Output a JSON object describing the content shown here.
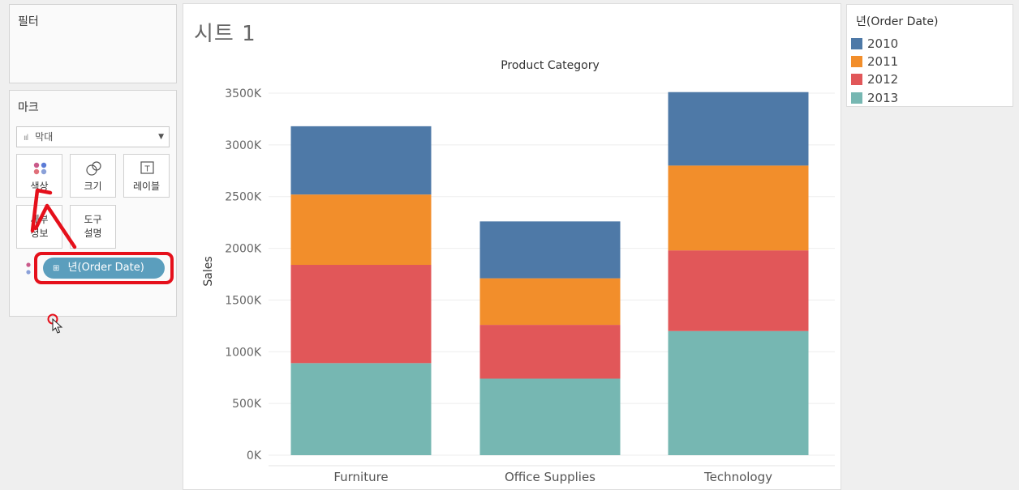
{
  "filters": {
    "title": "필터"
  },
  "marks": {
    "title": "마크",
    "mark_type": "막대",
    "buttons": [
      {
        "id": "color",
        "label": "색상"
      },
      {
        "id": "size",
        "label": "크기"
      },
      {
        "id": "label",
        "label": "레이블"
      },
      {
        "id": "detail",
        "label_line1": "세부",
        "label_line2": "정보"
      },
      {
        "id": "tooltip",
        "label_line1": "도구",
        "label_line2": "설명"
      }
    ],
    "pill": "년(Order Date)"
  },
  "sheet": {
    "title": "시트 1"
  },
  "legend": {
    "title": "년(Order Date)",
    "items": [
      {
        "label": "2010",
        "color": "#4e79a7"
      },
      {
        "label": "2011",
        "color": "#f28e2b"
      },
      {
        "label": "2012",
        "color": "#e15759"
      },
      {
        "label": "2013",
        "color": "#76b7b2"
      }
    ]
  },
  "chart_data": {
    "type": "bar",
    "stacked": true,
    "title": "Product Category",
    "ylabel": "Sales",
    "xlabel": "",
    "categories": [
      "Furniture",
      "Office Supplies",
      "Technology"
    ],
    "series": [
      {
        "name": "2013",
        "color": "#76b7b2",
        "values": [
          890000,
          740000,
          1200000
        ]
      },
      {
        "name": "2012",
        "color": "#e15759",
        "values": [
          950000,
          520000,
          780000
        ]
      },
      {
        "name": "2011",
        "color": "#f28e2b",
        "values": [
          680000,
          450000,
          820000
        ]
      },
      {
        "name": "2010",
        "color": "#4e79a7",
        "values": [
          660000,
          550000,
          710000
        ]
      }
    ],
    "ylim": [
      0,
      3500000
    ],
    "yticks": [
      "0K",
      "500K",
      "1000K",
      "1500K",
      "2000K",
      "2500K",
      "3000K",
      "3500K"
    ],
    "grid": true
  }
}
